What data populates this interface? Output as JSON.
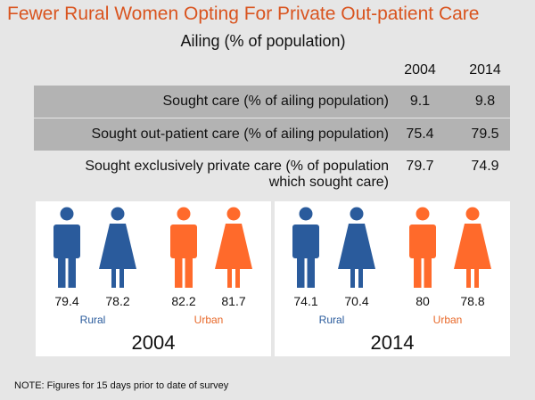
{
  "title": "Fewer Rural Women Opting For Private Out-patient Care",
  "subtitle": "Ailing (% of population)",
  "years": [
    "2004",
    "2014"
  ],
  "colors": {
    "rural": "#2a5b9c",
    "urban": "#ff6a2b",
    "title": "#d9541f",
    "shade": "#b3b3b3"
  },
  "rows": [
    {
      "label": "Sought care (% of ailing population)",
      "v2004": "9.1",
      "v2014": "9.8"
    },
    {
      "label": "Sought out-patient care (% of ailing population)",
      "v2004": "75.4",
      "v2014": "79.5"
    },
    {
      "label_line1": "Sought exclusively private care (% of population",
      "label_line2": "which sought care)",
      "v2004": "79.7",
      "v2014": "74.9"
    }
  ],
  "panels": [
    {
      "year": "2004",
      "rural_label": "Rural",
      "urban_label": "Urban",
      "figures": [
        {
          "group": "Rural",
          "sex": "male",
          "value": "79.4",
          "icon": "man-icon"
        },
        {
          "group": "Rural",
          "sex": "female",
          "value": "78.2",
          "icon": "woman-icon"
        },
        {
          "group": "Urban",
          "sex": "male",
          "value": "82.2",
          "icon": "man-icon"
        },
        {
          "group": "Urban",
          "sex": "female",
          "value": "81.7",
          "icon": "woman-icon"
        }
      ]
    },
    {
      "year": "2014",
      "rural_label": "Rural",
      "urban_label": "Urban",
      "figures": [
        {
          "group": "Rural",
          "sex": "male",
          "value": "74.1",
          "icon": "man-icon"
        },
        {
          "group": "Rural",
          "sex": "female",
          "value": "70.4",
          "icon": "woman-icon"
        },
        {
          "group": "Urban",
          "sex": "male",
          "value": "80",
          "icon": "man-icon"
        },
        {
          "group": "Urban",
          "sex": "female",
          "value": "78.8",
          "icon": "woman-icon"
        }
      ]
    }
  ],
  "note": "NOTE: Figures for 15 days prior to date of survey",
  "chart_data": {
    "type": "table",
    "title": "Fewer Rural Women Opting For Private Out-patient Care",
    "subtitle": "Ailing (% of population)",
    "columns": [
      "2004",
      "2014"
    ],
    "rows": [
      {
        "name": "Sought care (% of ailing population)",
        "values": [
          9.1,
          9.8
        ]
      },
      {
        "name": "Sought out-patient care (% of ailing population)",
        "values": [
          75.4,
          79.5
        ]
      },
      {
        "name": "Sought exclusively private care (% of population which sought care)",
        "values": [
          79.7,
          74.9
        ]
      }
    ],
    "breakdown": {
      "categories": [
        "Rural male",
        "Rural female",
        "Urban male",
        "Urban female"
      ],
      "series": [
        {
          "name": "2004",
          "values": [
            79.4,
            78.2,
            82.2,
            81.7
          ]
        },
        {
          "name": "2014",
          "values": [
            74.1,
            70.4,
            80,
            78.8
          ]
        }
      ]
    }
  }
}
